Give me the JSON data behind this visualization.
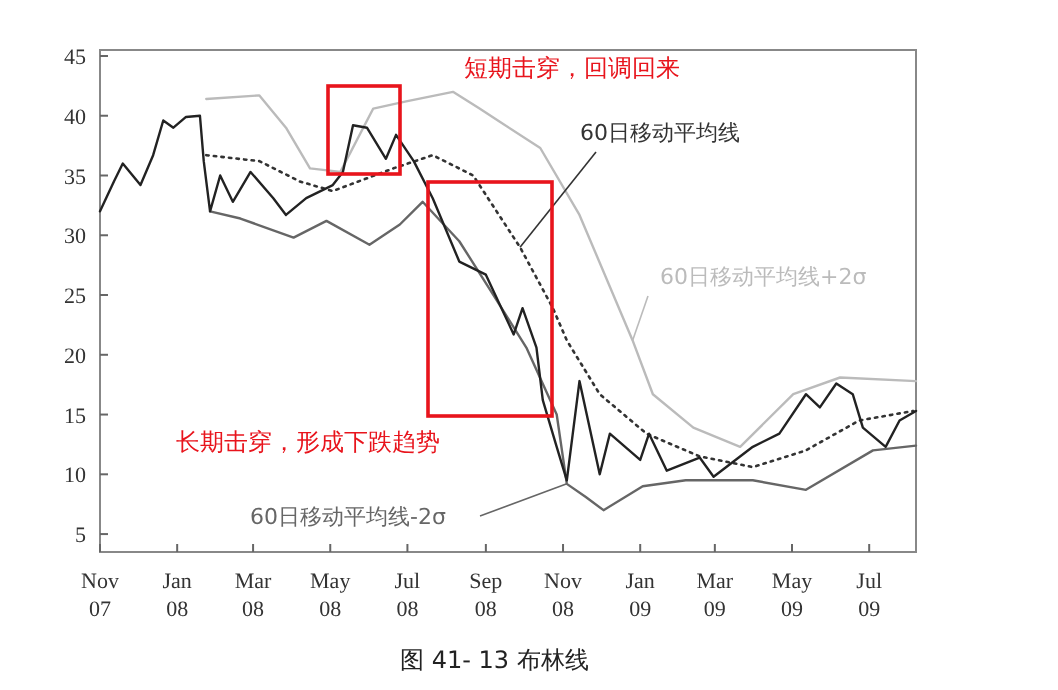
{
  "chart_data": {
    "type": "line",
    "title": "图 41- 13 布林线",
    "xlim": [
      "2007-11-01",
      "2009-08-07"
    ],
    "xticks": [
      {
        "value": "2007-11-01",
        "label": "Nov 07"
      },
      {
        "value": "2008-01-01",
        "label": "Jan 08"
      },
      {
        "value": "2008-03-01",
        "label": "Mar 08"
      },
      {
        "value": "2008-05-01",
        "label": "May 08"
      },
      {
        "value": "2008-07-01",
        "label": "Jul 08"
      },
      {
        "value": "2008-09-01",
        "label": "Sep 08"
      },
      {
        "value": "2008-11-01",
        "label": "Nov 08"
      },
      {
        "value": "2009-01-01",
        "label": "Jan 09"
      },
      {
        "value": "2009-03-01",
        "label": "Mar 09"
      },
      {
        "value": "2009-05-01",
        "label": "May 09"
      },
      {
        "value": "2009-07-01",
        "label": "Jul 09"
      }
    ],
    "ylim": [
      3.5,
      45.5
    ],
    "yticks": [
      5,
      10,
      15,
      20,
      25,
      30,
      35,
      40,
      45
    ],
    "grid": false,
    "series": [
      {
        "color": "#bbbbbb",
        "name": "60日移动平均线+2σ",
        "x": [
          "2008-01-24",
          "2008-03-06",
          "2008-03-27",
          "2008-04-15",
          "2008-05-09",
          "2008-06-04",
          "2008-06-30",
          "2008-08-06",
          "2008-08-27",
          "2008-09-12",
          "2008-10-14",
          "2008-11-14",
          "2008-12-26",
          "2009-01-11",
          "2009-02-12",
          "2009-03-21",
          "2009-05-02",
          "2009-06-08",
          "2009-08-07"
        ],
        "values": [
          41.4,
          41.7,
          39,
          35.6,
          35.3,
          40.6,
          41.2,
          42,
          40.6,
          39.5,
          37.3,
          31.7,
          21.2,
          16.7,
          13.9,
          12.3,
          16.7,
          18.1,
          17.8
        ]
      },
      {
        "color": "#666666",
        "name": "60日移动平均线-2σ",
        "x": [
          "2008-01-27",
          "2008-02-20",
          "2008-04-02",
          "2008-04-28",
          "2008-06-01",
          "2008-06-25",
          "2008-07-13",
          "2008-08-11",
          "2008-09-07",
          "2008-10-03",
          "2008-10-27",
          "2008-11-04",
          "2008-11-19",
          "2008-12-03",
          "2009-01-03",
          "2009-02-06",
          "2009-03-31",
          "2009-05-12",
          "2009-07-04",
          "2009-08-07"
        ],
        "values": [
          32,
          31.4,
          29.8,
          31.2,
          29.2,
          30.9,
          32.8,
          29.5,
          25,
          20.6,
          15,
          9.2,
          8.1,
          7,
          9,
          9.5,
          9.5,
          8.7,
          12,
          12.4
        ]
      },
      {
        "color": "#333333",
        "name": "60日移动平均线",
        "line_style": "dotted",
        "x": [
          "2008-01-24",
          "2008-03-06",
          "2008-04-07",
          "2008-05-03",
          "2008-06-20",
          "2008-07-21",
          "2008-08-22",
          "2008-09-28",
          "2008-10-24",
          "2008-11-04",
          "2008-11-30",
          "2009-01-06",
          "2009-02-17",
          "2009-03-31",
          "2009-05-12",
          "2009-06-23",
          "2009-08-05"
        ],
        "values": [
          36.7,
          36.2,
          34.5,
          33.7,
          35.6,
          36.7,
          35,
          29,
          23.9,
          21.2,
          16.7,
          13.4,
          11.5,
          10.6,
          12,
          14.5,
          15.3
        ]
      },
      {
        "color": "#222222",
        "x": [
          "2007-11-01",
          "2007-11-12",
          "2007-11-19",
          "2007-12-03",
          "2007-12-13",
          "2007-12-21",
          "2007-12-29",
          "2008-01-08",
          "2008-01-19",
          "2008-01-22",
          "2008-01-27",
          "2008-02-04",
          "2008-02-14",
          "2008-02-28",
          "2008-03-17",
          "2008-03-27",
          "2008-04-12",
          "2008-05-03",
          "2008-05-11",
          "2008-05-19",
          "2008-05-30",
          "2008-06-14",
          "2008-06-22",
          "2008-07-06",
          "2008-07-21",
          "2008-08-11",
          "2008-09-01",
          "2008-09-23",
          "2008-09-30",
          "2008-10-11",
          "2008-10-16",
          "2008-10-27",
          "2008-11-04",
          "2008-11-14",
          "2008-11-30",
          "2008-12-08",
          "2009-01-01",
          "2009-01-08",
          "2009-01-22",
          "2009-02-17",
          "2009-02-28",
          "2009-03-31",
          "2009-04-21",
          "2009-05-12",
          "2009-05-23",
          "2009-06-05",
          "2009-06-18",
          "2009-06-26",
          "2009-07-14",
          "2009-07-25",
          "2009-08-07"
        ],
        "values": [
          32,
          34.5,
          36,
          34.2,
          36.7,
          39.6,
          39,
          39.9,
          40,
          36.2,
          32,
          35,
          32.8,
          35.3,
          33.1,
          31.7,
          33.1,
          34.2,
          35.3,
          39.2,
          39,
          36.4,
          38.4,
          36.2,
          33.1,
          27.8,
          26.7,
          21.7,
          23.9,
          20.6,
          16.2,
          12.3,
          9.5,
          17.8,
          10,
          13.4,
          11.2,
          13.4,
          10.3,
          11.4,
          9.8,
          12.3,
          13.4,
          16.7,
          15.6,
          17.6,
          16.7,
          13.9,
          12.3,
          14.5,
          15.3
        ]
      }
    ],
    "annotations": [
      "短期击穿，回调回来",
      "长期击穿，形成下跌趋势"
    ]
  }
}
